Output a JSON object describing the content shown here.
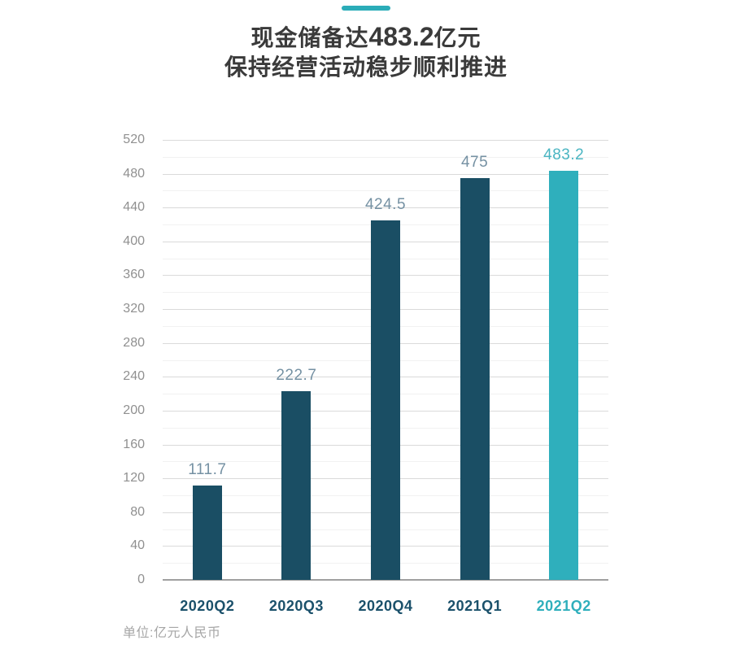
{
  "header": {
    "title_prefix": "现金储备达",
    "title_value": "483.2",
    "title_suffix": "亿元",
    "subtitle": "保持经营活动稳步顺利推进"
  },
  "chart_data": {
    "type": "bar",
    "title": "现金储备达483.2亿元",
    "subtitle": "保持经营活动稳步顺利推进",
    "categories": [
      "2020Q2",
      "2020Q3",
      "2020Q4",
      "2021Q1",
      "2021Q2"
    ],
    "values": [
      111.7,
      222.7,
      424.5,
      475,
      483.2
    ],
    "value_labels": [
      "111.7",
      "222.7",
      "424.5",
      "475",
      "483.2"
    ],
    "xlabel": "",
    "ylabel": "",
    "ylim": [
      0,
      520
    ],
    "y_major_step": 40,
    "y_minor_step": 20,
    "grid": true,
    "legend": false,
    "highlight_index": 4,
    "unit_note": "单位:亿元人民币",
    "colors": {
      "bar": "#1A4E64",
      "bar_highlight": "#2FAFBC",
      "value_label": "#7591A3",
      "value_label_highlight": "#4AB5C2",
      "x_label": "#1B516B",
      "x_label_highlight": "#2FAFBC",
      "y_label": "#909090",
      "grid_major": "#DADADA",
      "grid_minor": "#F1F1F1",
      "axis": "#A0A0A0",
      "accent": "#2BACB8",
      "unit_note": "#A6A6A6"
    }
  }
}
